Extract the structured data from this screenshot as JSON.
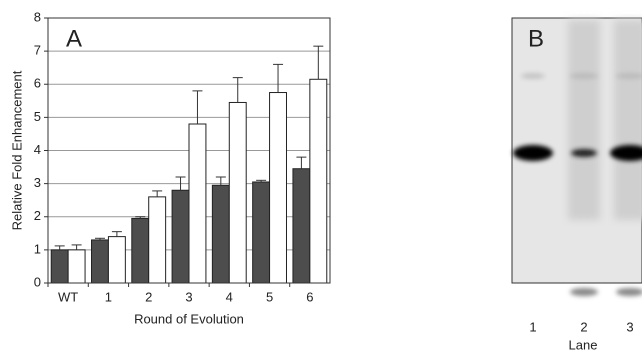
{
  "chart_data": [
    {
      "type": "bar",
      "panel_label": "A",
      "ylabel": "Relative Fold Enhancement",
      "xlabel": "Round of Evolution",
      "categories": [
        "WT",
        "1",
        "2",
        "3",
        "4",
        "5",
        "6"
      ],
      "series": [
        {
          "color": "#4d4d4d",
          "values": [
            1.0,
            1.3,
            1.95,
            2.8,
            2.95,
            3.05,
            3.45
          ],
          "errors": [
            0.12,
            0.05,
            0.05,
            0.4,
            0.25,
            0.05,
            0.35
          ]
        },
        {
          "color": "#ffffff",
          "values": [
            1.0,
            1.4,
            2.6,
            4.8,
            5.45,
            5.75,
            6.15
          ],
          "errors": [
            0.15,
            0.15,
            0.18,
            1.0,
            0.75,
            0.85,
            1.0
          ]
        }
      ],
      "ylim": [
        0,
        8
      ],
      "yticks": [
        0,
        1,
        2,
        3,
        4,
        5,
        6,
        7,
        8
      ],
      "grid": true
    },
    {
      "type": "gel",
      "panel_label": "B",
      "xlabel": "Lane",
      "categories": [
        "1",
        "2",
        "3"
      ]
    }
  ]
}
